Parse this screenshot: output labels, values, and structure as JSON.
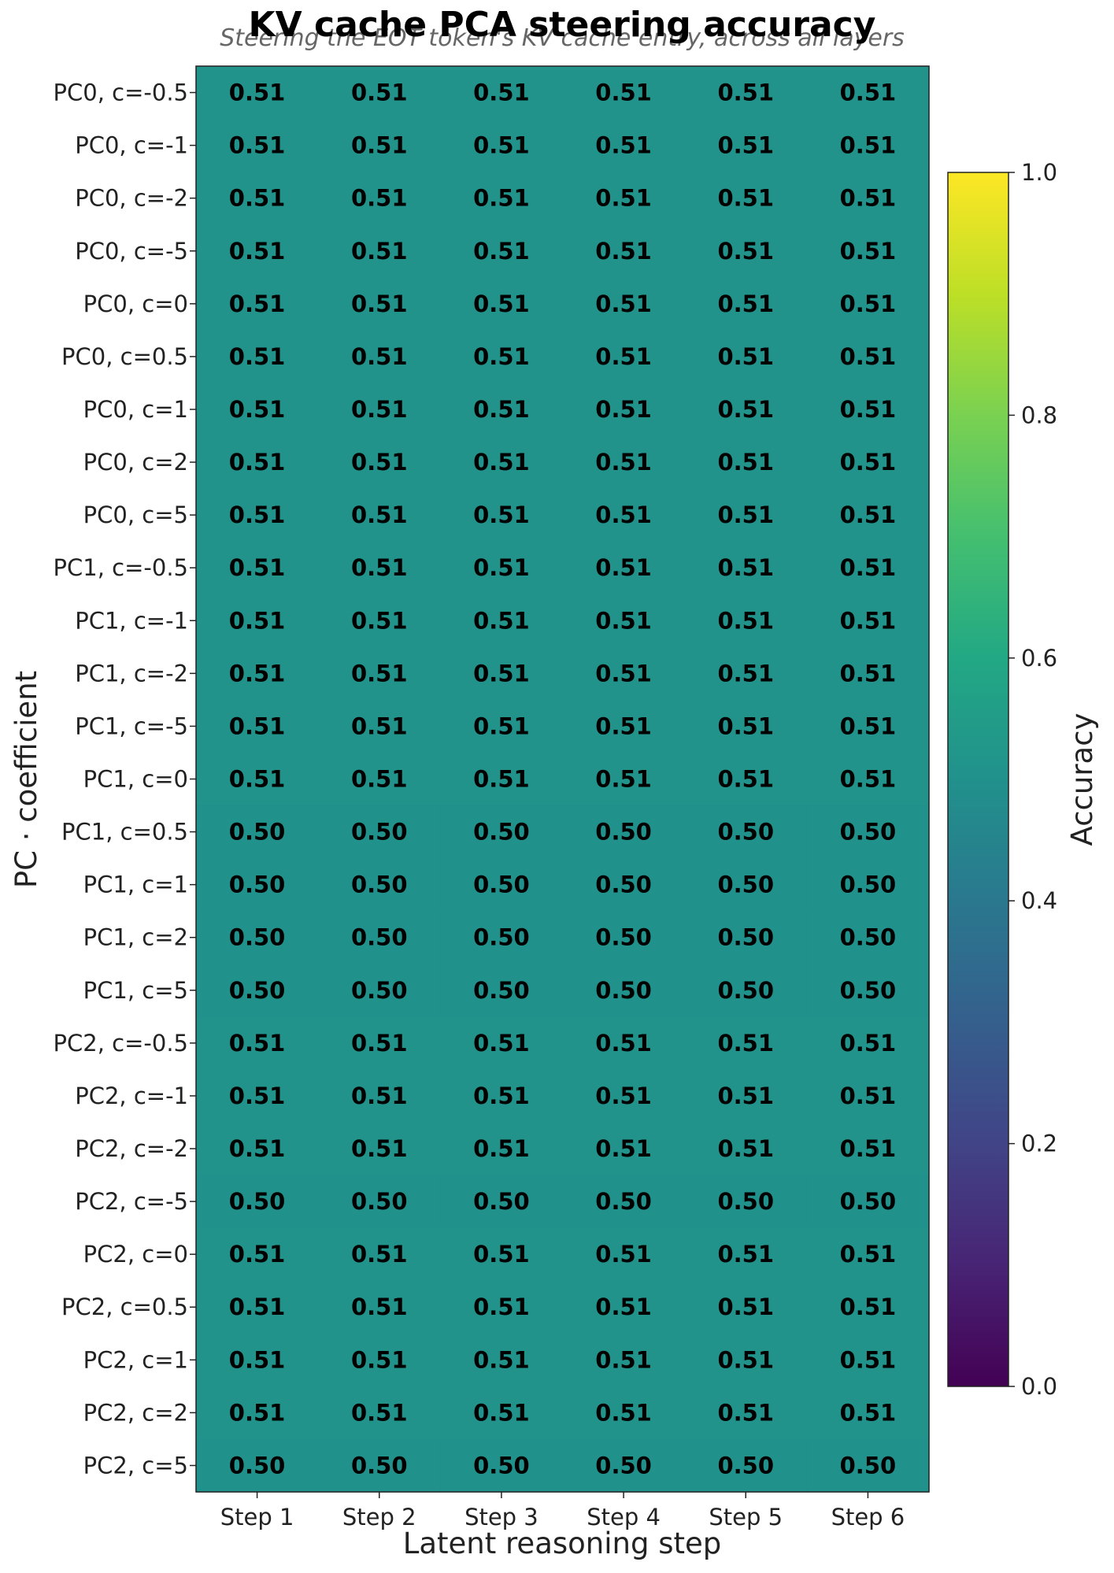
{
  "chart_data": {
    "type": "heatmap",
    "title": "KV cache PCA steering accuracy",
    "subtitle": "Steering the EOT token's KV cache entry, across all layers",
    "xlabel": "Latent reasoning step",
    "ylabel": "PC · coefficient",
    "x_categories": [
      "Step 1",
      "Step 2",
      "Step 3",
      "Step 4",
      "Step 5",
      "Step 6"
    ],
    "y_categories": [
      "PC0, c=-0.5",
      "PC0, c=-1",
      "PC0, c=-2",
      "PC0, c=-5",
      "PC0, c=0",
      "PC0, c=0.5",
      "PC0, c=1",
      "PC0, c=2",
      "PC0, c=5",
      "PC1, c=-0.5",
      "PC1, c=-1",
      "PC1, c=-2",
      "PC1, c=-5",
      "PC1, c=0",
      "PC1, c=0.5",
      "PC1, c=1",
      "PC1, c=2",
      "PC1, c=5",
      "PC2, c=-0.5",
      "PC2, c=-1",
      "PC2, c=-2",
      "PC2, c=-5",
      "PC2, c=0",
      "PC2, c=0.5",
      "PC2, c=1",
      "PC2, c=2",
      "PC2, c=5"
    ],
    "values": [
      [
        0.51,
        0.51,
        0.51,
        0.51,
        0.51,
        0.51
      ],
      [
        0.51,
        0.51,
        0.51,
        0.51,
        0.51,
        0.51
      ],
      [
        0.51,
        0.51,
        0.51,
        0.51,
        0.51,
        0.51
      ],
      [
        0.51,
        0.51,
        0.51,
        0.51,
        0.51,
        0.51
      ],
      [
        0.51,
        0.51,
        0.51,
        0.51,
        0.51,
        0.51
      ],
      [
        0.51,
        0.51,
        0.51,
        0.51,
        0.51,
        0.51
      ],
      [
        0.51,
        0.51,
        0.51,
        0.51,
        0.51,
        0.51
      ],
      [
        0.51,
        0.51,
        0.51,
        0.51,
        0.51,
        0.51
      ],
      [
        0.51,
        0.51,
        0.51,
        0.51,
        0.51,
        0.51
      ],
      [
        0.51,
        0.51,
        0.51,
        0.51,
        0.51,
        0.51
      ],
      [
        0.51,
        0.51,
        0.51,
        0.51,
        0.51,
        0.51
      ],
      [
        0.51,
        0.51,
        0.51,
        0.51,
        0.51,
        0.51
      ],
      [
        0.51,
        0.51,
        0.51,
        0.51,
        0.51,
        0.51
      ],
      [
        0.51,
        0.51,
        0.51,
        0.51,
        0.51,
        0.51
      ],
      [
        0.5,
        0.5,
        0.5,
        0.5,
        0.5,
        0.5
      ],
      [
        0.5,
        0.5,
        0.5,
        0.5,
        0.5,
        0.5
      ],
      [
        0.5,
        0.5,
        0.5,
        0.5,
        0.5,
        0.5
      ],
      [
        0.5,
        0.5,
        0.5,
        0.5,
        0.5,
        0.5
      ],
      [
        0.51,
        0.51,
        0.51,
        0.51,
        0.51,
        0.51
      ],
      [
        0.51,
        0.51,
        0.51,
        0.51,
        0.51,
        0.51
      ],
      [
        0.51,
        0.51,
        0.51,
        0.51,
        0.51,
        0.51
      ],
      [
        0.5,
        0.5,
        0.5,
        0.5,
        0.5,
        0.5
      ],
      [
        0.51,
        0.51,
        0.51,
        0.51,
        0.51,
        0.51
      ],
      [
        0.51,
        0.51,
        0.51,
        0.51,
        0.51,
        0.51
      ],
      [
        0.51,
        0.51,
        0.51,
        0.51,
        0.51,
        0.51
      ],
      [
        0.51,
        0.51,
        0.51,
        0.51,
        0.51,
        0.51
      ],
      [
        0.5,
        0.5,
        0.5,
        0.5,
        0.5,
        0.5
      ]
    ],
    "colorbar": {
      "label": "Accuracy",
      "range": [
        0.0,
        1.0
      ],
      "ticks": [
        0.0,
        0.2,
        0.4,
        0.6,
        0.8,
        1.0
      ],
      "tick_labels": [
        "0.0",
        "0.2",
        "0.4",
        "0.6",
        "0.8",
        "1.0"
      ],
      "colormap": "viridis"
    },
    "grid": false
  }
}
